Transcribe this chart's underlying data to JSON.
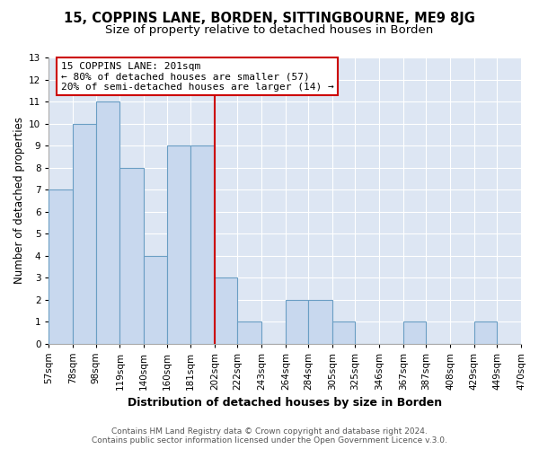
{
  "title": "15, COPPINS LANE, BORDEN, SITTINGBOURNE, ME9 8JG",
  "subtitle": "Size of property relative to detached houses in Borden",
  "xlabel": "Distribution of detached houses by size in Borden",
  "ylabel": "Number of detached properties",
  "bin_edges": [
    57,
    78,
    98,
    119,
    140,
    160,
    181,
    202,
    222,
    243,
    264,
    284,
    305,
    325,
    346,
    367,
    387,
    408,
    429,
    449,
    470
  ],
  "bin_labels": [
    "57sqm",
    "78sqm",
    "98sqm",
    "119sqm",
    "140sqm",
    "160sqm",
    "181sqm",
    "202sqm",
    "222sqm",
    "243sqm",
    "264sqm",
    "284sqm",
    "305sqm",
    "325sqm",
    "346sqm",
    "367sqm",
    "387sqm",
    "408sqm",
    "429sqm",
    "449sqm",
    "470sqm"
  ],
  "heights": [
    7,
    10,
    11,
    8,
    4,
    9,
    9,
    3,
    1,
    0,
    2,
    2,
    1,
    0,
    0,
    1,
    0,
    0,
    1,
    0
  ],
  "bar_color": "#c8d8ee",
  "bar_edge_color": "#6a9ec4",
  "vline_x": 202,
  "vline_color": "#cc0000",
  "annotation_title": "15 COPPINS LANE: 201sqm",
  "annotation_line1": "← 80% of detached houses are smaller (57)",
  "annotation_line2": "20% of semi-detached houses are larger (14) →",
  "annotation_box_facecolor": "#ffffff",
  "annotation_box_edgecolor": "#cc0000",
  "ylim": [
    0,
    13
  ],
  "yticks": [
    0,
    1,
    2,
    3,
    4,
    5,
    6,
    7,
    8,
    9,
    10,
    11,
    12,
    13
  ],
  "plot_bg_color": "#dde6f3",
  "figure_bg_color": "#ffffff",
  "grid_color": "#ffffff",
  "footer_line1": "Contains HM Land Registry data © Crown copyright and database right 2024.",
  "footer_line2": "Contains public sector information licensed under the Open Government Licence v.3.0.",
  "title_fontsize": 10.5,
  "subtitle_fontsize": 9.5,
  "xlabel_fontsize": 9,
  "ylabel_fontsize": 8.5,
  "tick_fontsize": 7.5,
  "footer_fontsize": 6.5
}
